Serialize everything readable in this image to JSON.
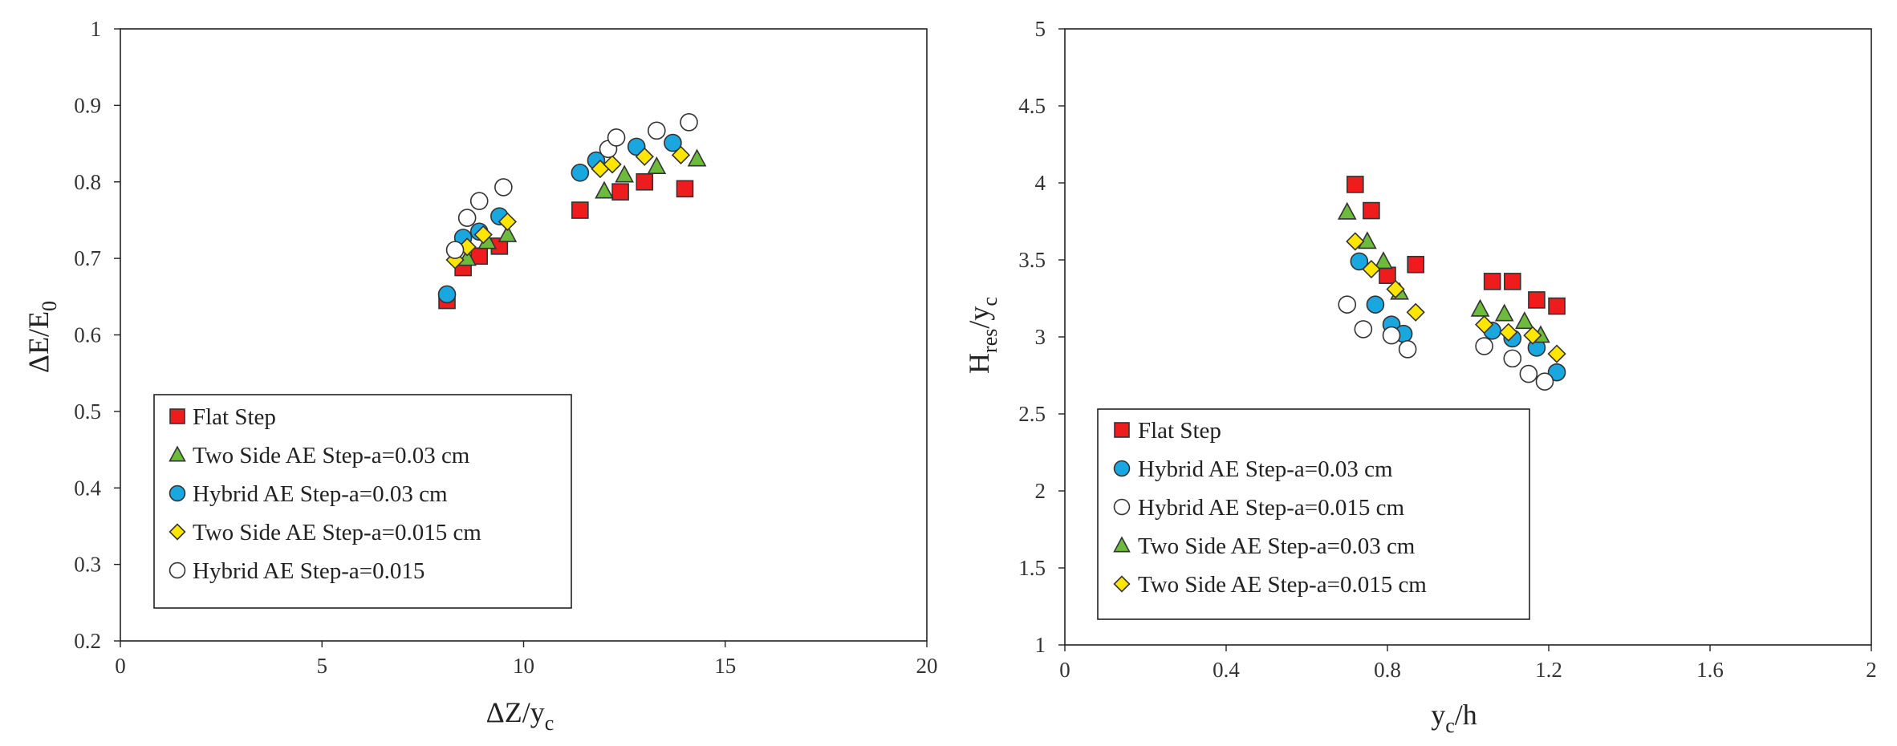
{
  "chart_data": [
    {
      "type": "scatter",
      "xlabel": {
        "base": "ΔZ/y",
        "sub": "c",
        "after": ""
      },
      "ylabel": {
        "base": "ΔE/E",
        "sub": "0",
        "after": ""
      },
      "xlim": [
        0,
        20
      ],
      "ylim": [
        0.2,
        1
      ],
      "xticks": [
        0,
        5,
        10,
        15,
        20
      ],
      "yticks": [
        0.2,
        0.3,
        0.4,
        0.5,
        0.6,
        0.7,
        0.8,
        0.9,
        1
      ],
      "grid": false,
      "legend_position": "bottom-left",
      "series": [
        {
          "name": "Flat Step",
          "marker": "square",
          "color": "#ee1c1c",
          "points": [
            [
              8.1,
              0.645
            ],
            [
              8.5,
              0.688
            ],
            [
              8.9,
              0.703
            ],
            [
              9.4,
              0.716
            ],
            [
              11.4,
              0.763
            ],
            [
              12.4,
              0.787
            ],
            [
              13.0,
              0.8
            ],
            [
              14.0,
              0.791
            ]
          ]
        },
        {
          "name": "Two Side AE Step-a=0.03 cm",
          "marker": "triangle",
          "color": "#6cbb3c",
          "points": [
            [
              8.6,
              0.7
            ],
            [
              9.1,
              0.722
            ],
            [
              9.6,
              0.731
            ],
            [
              12.0,
              0.788
            ],
            [
              12.5,
              0.809
            ],
            [
              13.3,
              0.82
            ],
            [
              14.3,
              0.83
            ]
          ]
        },
        {
          "name": "Hybrid AE Step-a=0.03 cm",
          "marker": "circle",
          "color": "#1aa7e0",
          "points": [
            [
              8.1,
              0.653
            ],
            [
              8.5,
              0.727
            ],
            [
              8.9,
              0.735
            ],
            [
              9.4,
              0.755
            ],
            [
              11.4,
              0.812
            ],
            [
              11.8,
              0.828
            ],
            [
              12.8,
              0.846
            ],
            [
              13.7,
              0.851
            ]
          ]
        },
        {
          "name": "Two Side AE Step-a=0.015 cm",
          "marker": "diamond",
          "color": "#ffe600",
          "points": [
            [
              8.3,
              0.698
            ],
            [
              8.6,
              0.715
            ],
            [
              9.0,
              0.731
            ],
            [
              9.6,
              0.748
            ],
            [
              11.9,
              0.817
            ],
            [
              12.2,
              0.823
            ],
            [
              13.0,
              0.833
            ],
            [
              13.9,
              0.835
            ]
          ]
        },
        {
          "name": "Hybrid AE Step-a=0.015",
          "marker": "circle",
          "color": "#ffffff",
          "points": [
            [
              8.3,
              0.711
            ],
            [
              8.6,
              0.753
            ],
            [
              8.9,
              0.775
            ],
            [
              9.5,
              0.793
            ],
            [
              12.1,
              0.843
            ],
            [
              12.3,
              0.858
            ],
            [
              13.3,
              0.867
            ],
            [
              14.1,
              0.878
            ]
          ]
        }
      ]
    },
    {
      "type": "scatter",
      "xlabel": {
        "base": "y",
        "sub": "c",
        "after": "/h"
      },
      "ylabel": {
        "base": "H",
        "sub": "res",
        "after": "/y",
        "sub2": "c"
      },
      "xlim": [
        0,
        2
      ],
      "ylim": [
        1,
        5
      ],
      "xticks": [
        0,
        0.4,
        0.8,
        1.2,
        1.6,
        2
      ],
      "yticks": [
        1,
        1.5,
        2,
        2.5,
        3,
        3.5,
        4,
        4.5,
        5
      ],
      "grid": false,
      "legend_position": "bottom-left",
      "series": [
        {
          "name": "Flat Step",
          "marker": "square",
          "color": "#ee1c1c",
          "points": [
            [
              0.72,
              3.99
            ],
            [
              0.76,
              3.82
            ],
            [
              0.8,
              3.4
            ],
            [
              0.87,
              3.47
            ],
            [
              1.06,
              3.36
            ],
            [
              1.11,
              3.36
            ],
            [
              1.17,
              3.24
            ],
            [
              1.22,
              3.2
            ]
          ]
        },
        {
          "name": "Hybrid AE Step-a=0.03 cm",
          "marker": "circle",
          "color": "#1aa7e0",
          "points": [
            [
              0.73,
              3.49
            ],
            [
              0.77,
              3.21
            ],
            [
              0.81,
              3.08
            ],
            [
              0.84,
              3.02
            ],
            [
              1.06,
              3.04
            ],
            [
              1.11,
              2.99
            ],
            [
              1.17,
              2.93
            ],
            [
              1.22,
              2.77
            ]
          ]
        },
        {
          "name": "Hybrid AE Step-a=0.015 cm",
          "marker": "circle",
          "color": "#ffffff",
          "points": [
            [
              0.7,
              3.21
            ],
            [
              0.74,
              3.05
            ],
            [
              0.81,
              3.01
            ],
            [
              0.85,
              2.92
            ],
            [
              1.04,
              2.94
            ],
            [
              1.11,
              2.86
            ],
            [
              1.15,
              2.76
            ],
            [
              1.19,
              2.71
            ]
          ]
        },
        {
          "name": "Two Side AE Step-a=0.03 cm",
          "marker": "triangle",
          "color": "#6cbb3c",
          "points": [
            [
              0.7,
              3.81
            ],
            [
              0.75,
              3.62
            ],
            [
              0.79,
              3.49
            ],
            [
              0.83,
              3.29
            ],
            [
              1.03,
              3.18
            ],
            [
              1.09,
              3.15
            ],
            [
              1.14,
              3.1
            ],
            [
              1.18,
              3.01
            ]
          ]
        },
        {
          "name": "Two Side AE Step-a=0.015 cm",
          "marker": "diamond",
          "color": "#ffe600",
          "points": [
            [
              0.72,
              3.62
            ],
            [
              0.76,
              3.44
            ],
            [
              0.82,
              3.31
            ],
            [
              0.87,
              3.16
            ],
            [
              1.04,
              3.08
            ],
            [
              1.1,
              3.03
            ],
            [
              1.16,
              3.01
            ],
            [
              1.22,
              2.89
            ]
          ]
        }
      ]
    }
  ]
}
